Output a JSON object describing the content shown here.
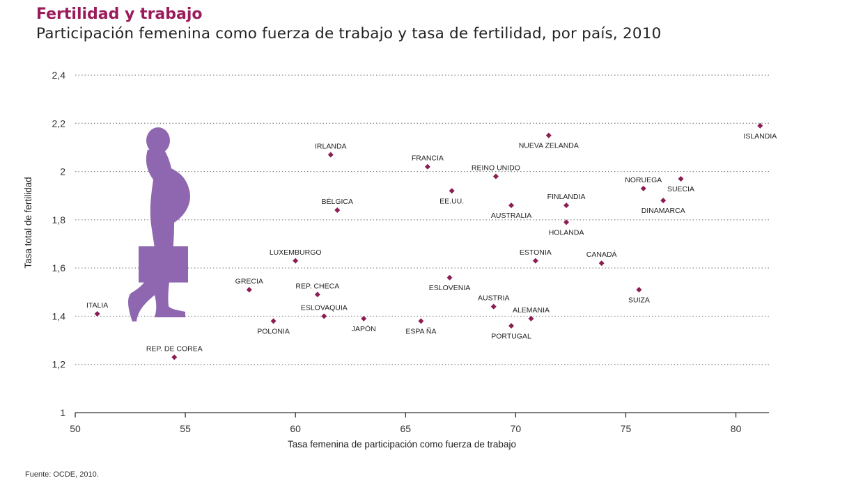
{
  "header": {
    "title": "Fertilidad y trabajo",
    "subtitle": "Participación femenina como fuerza de trabajo y tasa de fertilidad, por país, 2010"
  },
  "footer": {
    "source": "Fuente: OCDE, 2010."
  },
  "colors": {
    "marker": "#8c1d52",
    "title": "#9b1b5a",
    "silhouette": "#8e67b0",
    "grid": "#888888"
  },
  "icons": [
    "pregnant-woman-silhouette"
  ],
  "chart_data": {
    "type": "scatter",
    "xlabel": "Tasa femenina de participación como fuerza de trabajo",
    "ylabel": "Tasa total de fertilidad",
    "xlim": [
      50,
      81.5
    ],
    "ylim": [
      1,
      2.4
    ],
    "x_ticks": [
      50,
      55,
      60,
      65,
      70,
      75,
      80
    ],
    "y_ticks": [
      1,
      1.2,
      1.4,
      1.6,
      1.8,
      2,
      2.2,
      2.4
    ],
    "y_tick_labels": [
      "1",
      "1,2",
      "1,4",
      "1,6",
      "1,8",
      "2",
      "2,2",
      "2,4"
    ],
    "grid": "horizontal-dotted",
    "points": [
      {
        "label": "ISLANDIA",
        "x": 81.1,
        "y": 2.19,
        "pos": "below"
      },
      {
        "label": "NUEVA ZELANDA",
        "x": 71.5,
        "y": 2.15,
        "pos": "below"
      },
      {
        "label": "IRLANDA",
        "x": 61.6,
        "y": 2.07,
        "pos": "above"
      },
      {
        "label": "FRANCIA",
        "x": 66.0,
        "y": 2.02,
        "pos": "above"
      },
      {
        "label": "REINO UNIDO",
        "x": 69.1,
        "y": 1.98,
        "pos": "above"
      },
      {
        "label": "SUECIA",
        "x": 77.5,
        "y": 1.97,
        "pos": "below"
      },
      {
        "label": "NORUEGA",
        "x": 75.8,
        "y": 1.93,
        "pos": "above"
      },
      {
        "label": "EE.UU.",
        "x": 67.1,
        "y": 1.92,
        "pos": "below"
      },
      {
        "label": "DINAMARCA",
        "x": 76.7,
        "y": 1.88,
        "pos": "below"
      },
      {
        "label": "AUSTRALIA",
        "x": 69.8,
        "y": 1.86,
        "pos": "below"
      },
      {
        "label": "FINLANDIA",
        "x": 72.3,
        "y": 1.86,
        "pos": "above"
      },
      {
        "label": "BÉLGICA",
        "x": 61.9,
        "y": 1.84,
        "pos": "above"
      },
      {
        "label": "HOLANDA",
        "x": 72.3,
        "y": 1.79,
        "pos": "below"
      },
      {
        "label": "LUXEMBURGO",
        "x": 60.0,
        "y": 1.63,
        "pos": "above"
      },
      {
        "label": "ESTONIA",
        "x": 70.9,
        "y": 1.63,
        "pos": "above"
      },
      {
        "label": "CANADÁ",
        "x": 73.9,
        "y": 1.62,
        "pos": "above"
      },
      {
        "label": "ESLOVENIA",
        "x": 67.0,
        "y": 1.56,
        "pos": "below"
      },
      {
        "label": "GRECIA",
        "x": 57.9,
        "y": 1.51,
        "pos": "above"
      },
      {
        "label": "SUIZA",
        "x": 75.6,
        "y": 1.51,
        "pos": "below"
      },
      {
        "label": "REP. CHECA",
        "x": 61.0,
        "y": 1.49,
        "pos": "above"
      },
      {
        "label": "AUSTRIA",
        "x": 69.0,
        "y": 1.44,
        "pos": "above"
      },
      {
        "label": "ITALIA",
        "x": 51.0,
        "y": 1.41,
        "pos": "above"
      },
      {
        "label": "ESLOVAQUIA",
        "x": 61.3,
        "y": 1.4,
        "pos": "above"
      },
      {
        "label": "ALEMANIA",
        "x": 70.7,
        "y": 1.39,
        "pos": "above"
      },
      {
        "label": "JAPÓN",
        "x": 63.1,
        "y": 1.39,
        "pos": "below"
      },
      {
        "label": "POLONIA",
        "x": 59.0,
        "y": 1.38,
        "pos": "below"
      },
      {
        "label": "ESPA ÑA",
        "x": 65.7,
        "y": 1.38,
        "pos": "below"
      },
      {
        "label": "PORTUGAL",
        "x": 69.8,
        "y": 1.36,
        "pos": "below"
      },
      {
        "label": "REP. DE COREA",
        "x": 54.5,
        "y": 1.23,
        "pos": "above"
      }
    ]
  }
}
